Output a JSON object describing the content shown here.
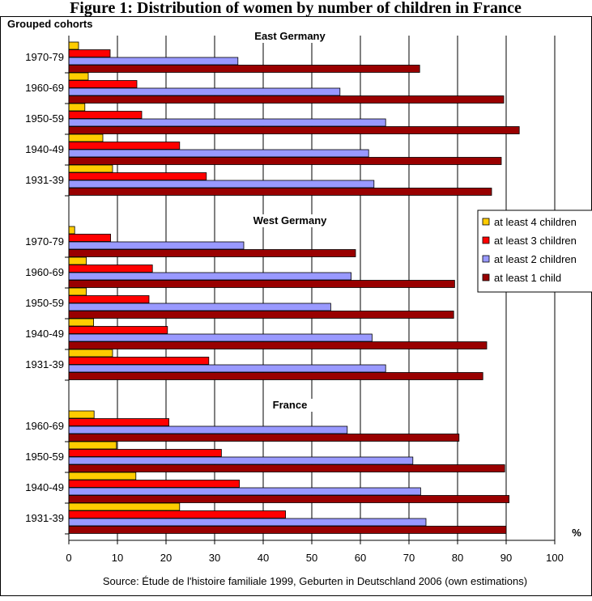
{
  "figure_title": "Figure 1: Distribution of women by number of children in France",
  "y_axis_title": "Grouped cohorts",
  "unit_label": "%",
  "source": "Source: Étude de l'histoire familiale 1999, Geburten in Deutschland 2006 (own estimations)",
  "chart_data": {
    "type": "bar",
    "orientation": "horizontal",
    "xlim": [
      0,
      100
    ],
    "x_ticks": [
      0,
      10,
      20,
      30,
      40,
      50,
      60,
      70,
      80,
      90,
      100
    ],
    "grid": true,
    "legend_position": "right",
    "series": [
      {
        "name": "at least 4 children",
        "color": "#FFCC00"
      },
      {
        "name": "at least 3 children",
        "color": "#FF0000"
      },
      {
        "name": "at least 2 children",
        "color": "#9999FF"
      },
      {
        "name": "at least 1 child",
        "color": "#990000"
      }
    ],
    "groups": [
      {
        "name": "East Germany",
        "cohorts": [
          {
            "label": "1970-79",
            "values": [
              2,
              8.5,
              34.8,
              72.2
            ]
          },
          {
            "label": "1960-69",
            "values": [
              4,
              14,
              55.8,
              89.5
            ]
          },
          {
            "label": "1950-59",
            "values": [
              3.3,
              15,
              65.2,
              92.7
            ]
          },
          {
            "label": "1940-49",
            "values": [
              7,
              22.8,
              61.7,
              89
            ]
          },
          {
            "label": "1931-39",
            "values": [
              9,
              28.3,
              62.8,
              87
            ]
          }
        ]
      },
      {
        "name": "West Germany",
        "cohorts": [
          {
            "label": "1970-79",
            "values": [
              1.2,
              8.6,
              36,
              59
            ]
          },
          {
            "label": "1960-69",
            "values": [
              3.6,
              17.2,
              58.1,
              79.4
            ]
          },
          {
            "label": "1950-59",
            "values": [
              3.6,
              16.5,
              53.9,
              79.2
            ]
          },
          {
            "label": "1940-49",
            "values": [
              5.1,
              20.3,
              62.4,
              86
            ]
          },
          {
            "label": "1931-39",
            "values": [
              9,
              28.8,
              65.2,
              85.2
            ]
          }
        ]
      },
      {
        "name": "France",
        "cohorts": [
          {
            "label": "1960-69",
            "values": [
              5.2,
              20.6,
              57.3,
              80.3
            ]
          },
          {
            "label": "1950-59",
            "values": [
              9.8,
              31.4,
              70.8,
              89.7
            ]
          },
          {
            "label": "1940-49",
            "values": [
              13.8,
              35.1,
              72.4,
              90.6
            ]
          },
          {
            "label": "1931-39",
            "values": [
              22.8,
              44.6,
              73.5,
              90
            ]
          }
        ]
      }
    ]
  }
}
